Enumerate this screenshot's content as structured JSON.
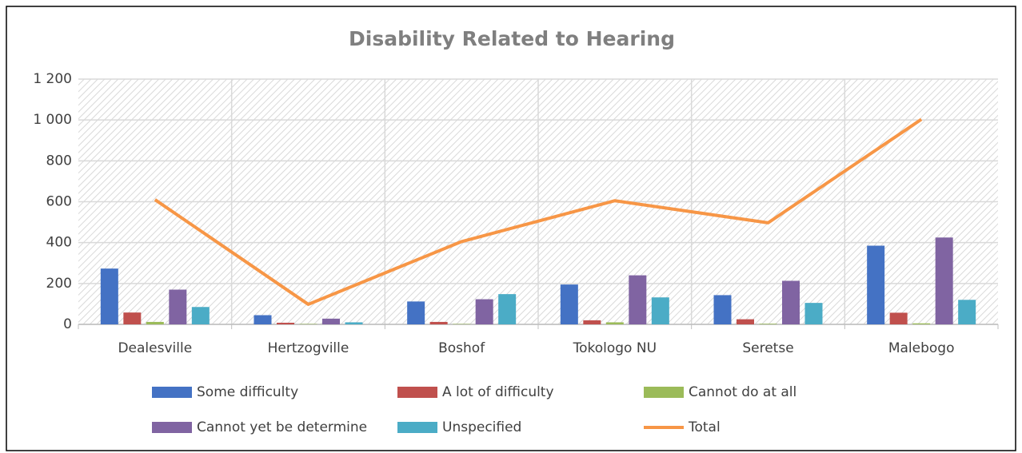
{
  "chart_data": {
    "type": "bar",
    "title": "Disability Related to Hearing",
    "categories": [
      "Dealesville",
      "Hertzogville",
      "Boshof",
      "Tokologo NU",
      "Seretse",
      "Malebogo"
    ],
    "series": [
      {
        "name": "Some difficulty",
        "color": "#4472c4",
        "values": [
          273,
          45,
          112,
          195,
          143,
          385
        ]
      },
      {
        "name": "A lot of difficulty",
        "color": "#c0504d",
        "values": [
          58,
          8,
          12,
          20,
          25,
          57
        ]
      },
      {
        "name": "Cannot do at all",
        "color": "#9bbb59",
        "values": [
          12,
          2,
          2,
          10,
          3,
          5
        ]
      },
      {
        "name": "Cannot yet be determine",
        "color": "#8064a2",
        "values": [
          170,
          28,
          123,
          240,
          213,
          425
        ]
      },
      {
        "name": "Unspecified",
        "color": "#4bacc6",
        "values": [
          85,
          10,
          148,
          132,
          105,
          120
        ]
      },
      {
        "name": "Total",
        "color": "#f79646",
        "type": "line",
        "values": [
          610,
          98,
          405,
          605,
          497,
          1003
        ]
      }
    ],
    "ylim": [
      0,
      1200
    ],
    "yticks": [
      0,
      200,
      400,
      600,
      800,
      {
        "value": 1000,
        "label": "1 000"
      },
      {
        "value": 1200,
        "label": "1 200"
      }
    ],
    "grid": true,
    "legend": "bottom"
  }
}
